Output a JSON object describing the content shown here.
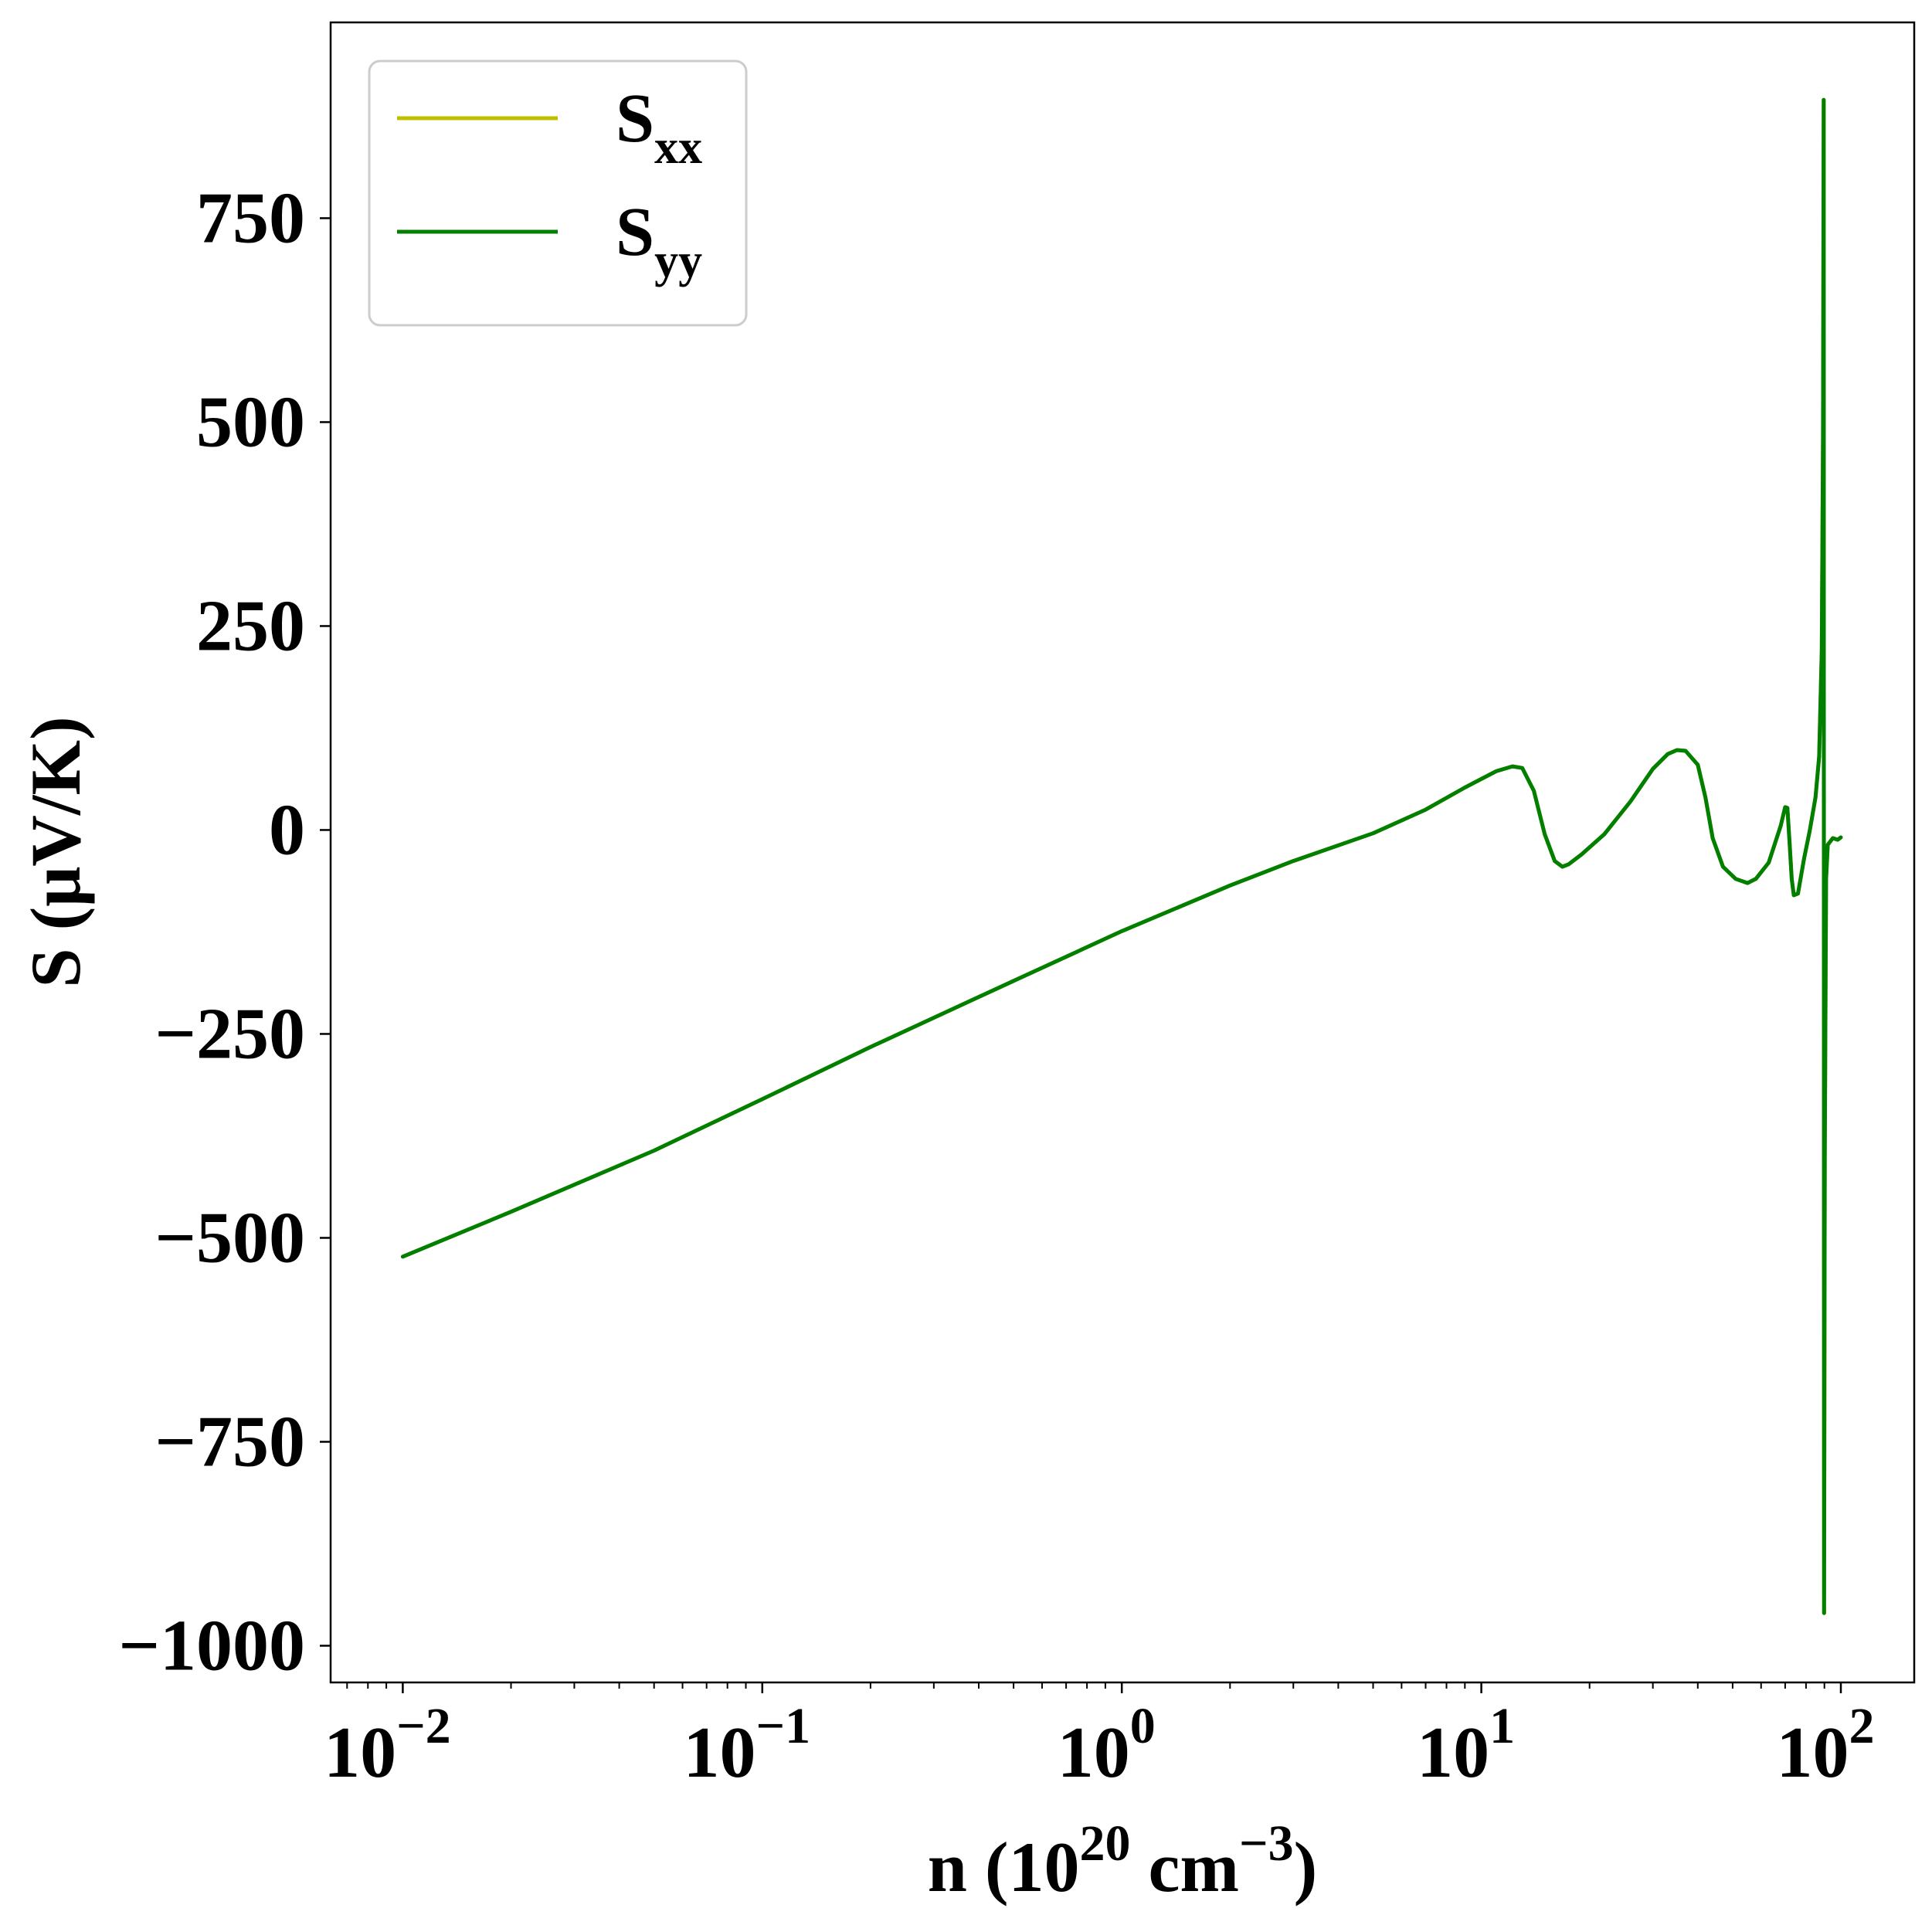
{
  "chart_data": {
    "type": "line",
    "xlabel": {
      "base": "n (10",
      "sup1": "20",
      "mid": " cm",
      "sup2": "−3",
      "end": ")"
    },
    "ylabel": "S (μV/K)",
    "xscale": "log",
    "xlim": [
      0.0063,
      160
    ],
    "ylim": [
      -1045,
      990
    ],
    "x_ticks": [
      {
        "value": 0.01,
        "base": "10",
        "exp": "−2"
      },
      {
        "value": 0.1,
        "base": "10",
        "exp": "−1"
      },
      {
        "value": 1,
        "base": "10",
        "exp": "0"
      },
      {
        "value": 10,
        "base": "10",
        "exp": "1"
      },
      {
        "value": 100,
        "base": "10",
        "exp": "2"
      }
    ],
    "y_ticks": [
      {
        "value": 750,
        "label": "750"
      },
      {
        "value": 500,
        "label": "500"
      },
      {
        "value": 250,
        "label": "250"
      },
      {
        "value": 0,
        "label": "0"
      },
      {
        "value": -250,
        "label": "−250"
      },
      {
        "value": -500,
        "label": "−500"
      },
      {
        "value": -750,
        "label": "−750"
      },
      {
        "value": -1000,
        "label": "−1000"
      }
    ],
    "grid": false,
    "legend": {
      "position": "top-left"
    },
    "series": [
      {
        "name": "S_xx",
        "label_main": "S",
        "label_sub": "xx",
        "color": "#bfbf00",
        "points": [
          [
            0.01,
            -523
          ],
          [
            0.02,
            -468
          ],
          [
            0.05,
            -393
          ],
          [
            0.1,
            -330
          ],
          [
            0.2,
            -266
          ],
          [
            0.5,
            -185
          ],
          [
            1,
            -124
          ],
          [
            2,
            -68
          ],
          [
            3,
            -38
          ],
          [
            5,
            -4
          ],
          [
            7,
            25
          ],
          [
            9,
            52
          ],
          [
            11,
            72
          ],
          [
            12.2,
            78
          ],
          [
            13,
            76
          ],
          [
            14,
            48
          ],
          [
            15,
            -5
          ],
          [
            16,
            -38
          ],
          [
            16.8,
            -45
          ],
          [
            17.5,
            -42
          ],
          [
            19,
            -30
          ],
          [
            22,
            -5
          ],
          [
            26,
            35
          ],
          [
            30,
            75
          ],
          [
            33,
            93
          ],
          [
            35,
            98
          ],
          [
            37,
            97
          ],
          [
            40,
            80
          ],
          [
            42,
            40
          ],
          [
            44,
            -10
          ],
          [
            47,
            -45
          ],
          [
            51,
            -60
          ],
          [
            55,
            -65
          ],
          [
            58,
            -60
          ],
          [
            63,
            -40
          ],
          [
            68,
            5
          ],
          [
            70,
            28
          ],
          [
            71,
            27
          ],
          [
            72,
            -15
          ],
          [
            73,
            -60
          ],
          [
            74,
            -80
          ],
          [
            76,
            -78
          ],
          [
            79,
            -35
          ],
          [
            82,
            0
          ],
          [
            85,
            40
          ],
          [
            87,
            90
          ],
          [
            88.5,
            220
          ],
          [
            89.2,
            480
          ],
          [
            89.6,
            895
          ],
          [
            89.8,
            -960
          ],
          [
            90.2,
            -400
          ],
          [
            91,
            -60
          ],
          [
            92,
            -18
          ],
          [
            95,
            -10
          ],
          [
            98,
            -12
          ],
          [
            100,
            -9
          ]
        ]
      },
      {
        "name": "S_yy",
        "label_main": "S",
        "label_sub": "yy",
        "color": "#007f00",
        "points": [
          [
            0.01,
            -523
          ],
          [
            0.02,
            -468
          ],
          [
            0.05,
            -393
          ],
          [
            0.1,
            -330
          ],
          [
            0.2,
            -266
          ],
          [
            0.5,
            -185
          ],
          [
            1,
            -124
          ],
          [
            2,
            -68
          ],
          [
            3,
            -38
          ],
          [
            5,
            -4
          ],
          [
            7,
            25
          ],
          [
            9,
            52
          ],
          [
            11,
            72
          ],
          [
            12.2,
            78
          ],
          [
            13,
            76
          ],
          [
            14,
            48
          ],
          [
            15,
            -5
          ],
          [
            16,
            -38
          ],
          [
            16.8,
            -45
          ],
          [
            17.5,
            -42
          ],
          [
            19,
            -30
          ],
          [
            22,
            -5
          ],
          [
            26,
            35
          ],
          [
            30,
            75
          ],
          [
            33,
            93
          ],
          [
            35,
            98
          ],
          [
            37,
            97
          ],
          [
            40,
            80
          ],
          [
            42,
            40
          ],
          [
            44,
            -10
          ],
          [
            47,
            -45
          ],
          [
            51,
            -60
          ],
          [
            55,
            -65
          ],
          [
            58,
            -60
          ],
          [
            63,
            -40
          ],
          [
            68,
            5
          ],
          [
            70,
            28
          ],
          [
            71,
            27
          ],
          [
            72,
            -15
          ],
          [
            73,
            -60
          ],
          [
            74,
            -80
          ],
          [
            76,
            -78
          ],
          [
            79,
            -35
          ],
          [
            82,
            0
          ],
          [
            85,
            40
          ],
          [
            87,
            90
          ],
          [
            88.5,
            220
          ],
          [
            89.2,
            480
          ],
          [
            89.6,
            895
          ],
          [
            89.8,
            -960
          ],
          [
            90.2,
            -400
          ],
          [
            91,
            -60
          ],
          [
            92,
            -18
          ],
          [
            95,
            -10
          ],
          [
            98,
            -12
          ],
          [
            100,
            -9
          ]
        ]
      }
    ]
  }
}
